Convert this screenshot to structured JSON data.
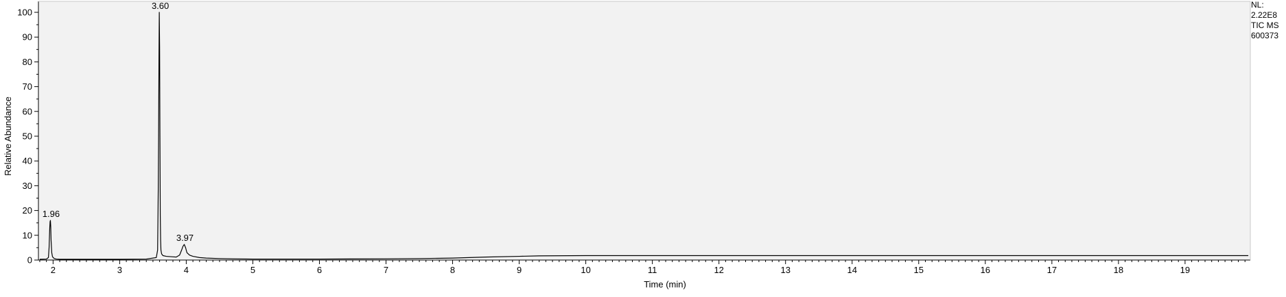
{
  "chart_data": {
    "type": "line",
    "xlabel": "Time (min)",
    "ylabel": "Relative Abundance",
    "xlim": [
      1.78,
      19.98
    ],
    "ylim": [
      0,
      100
    ],
    "x_ticks": [
      2,
      3,
      4,
      5,
      6,
      7,
      8,
      9,
      10,
      11,
      12,
      13,
      14,
      15,
      16,
      17,
      18,
      19
    ],
    "y_ticks": [
      0,
      10,
      20,
      30,
      40,
      50,
      60,
      70,
      80,
      90,
      100
    ],
    "grid": false,
    "background": "#f2f2f2",
    "line_color": "#000000",
    "series": [
      {
        "x": [
          1.8,
          1.9,
          1.93,
          1.94,
          1.95,
          1.955,
          1.96,
          1.965,
          1.97,
          1.98,
          1.99,
          2.0,
          2.02,
          2.05,
          2.1,
          2.2,
          2.5,
          3.0,
          3.4,
          3.55,
          3.57,
          3.58,
          3.585,
          3.59,
          3.595,
          3.6,
          3.605,
          3.61,
          3.615,
          3.62,
          3.63,
          3.65,
          3.7,
          3.8,
          3.85,
          3.9,
          3.93,
          3.95,
          3.97,
          3.99,
          4.01,
          4.05,
          4.1,
          4.2,
          4.3,
          4.5,
          4.7,
          5.0,
          5.5,
          6.0,
          7.0,
          7.5,
          8.0,
          8.5,
          9.0,
          9.3,
          10.0,
          12.0,
          15.0,
          18.0,
          19.95
        ],
        "y": [
          0.3,
          0.4,
          1.0,
          5.0,
          13.0,
          15.5,
          16.0,
          13.5,
          8.0,
          3.0,
          1.5,
          1.0,
          0.6,
          0.4,
          0.3,
          0.3,
          0.3,
          0.3,
          0.4,
          1.0,
          4.0,
          30.0,
          50.0,
          80.0,
          100.0,
          86.0,
          50.0,
          18.0,
          8.0,
          4.0,
          2.5,
          1.8,
          1.5,
          1.3,
          1.2,
          2.0,
          4.0,
          5.5,
          6.3,
          5.0,
          3.0,
          2.0,
          1.5,
          1.0,
          0.8,
          0.6,
          0.5,
          0.4,
          0.4,
          0.4,
          0.5,
          0.6,
          0.8,
          1.2,
          1.5,
          1.7,
          1.8,
          1.8,
          1.8,
          1.8,
          1.8
        ]
      }
    ],
    "peak_labels": [
      {
        "x": 1.96,
        "y": 16.0,
        "text": "1.96"
      },
      {
        "x": 3.6,
        "y": 100.0,
        "text": "3.60"
      },
      {
        "x": 3.97,
        "y": 6.3,
        "text": "3.97"
      }
    ]
  },
  "nl_info": {
    "line1": "NL:",
    "line2": "2.22E8",
    "line3": "TIC  MS",
    "line4": "600373"
  }
}
